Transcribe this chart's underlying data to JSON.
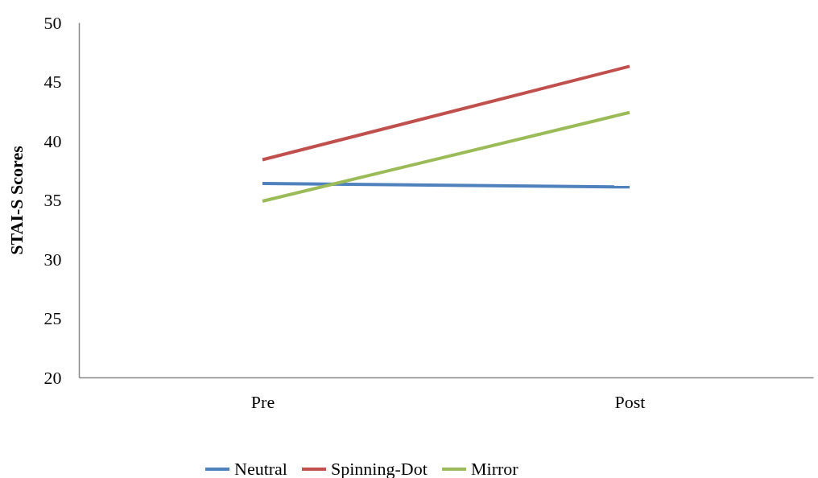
{
  "chart_data": {
    "type": "line",
    "ylabel": "STAI-S Scores",
    "categories": [
      "Pre",
      "Post"
    ],
    "series": [
      {
        "name": "Neutral",
        "color": "#4f81bd",
        "values": [
          36.4,
          36.1
        ]
      },
      {
        "name": "Spinning-Dot",
        "color": "#c0504d",
        "values": [
          38.4,
          46.3
        ]
      },
      {
        "name": "Mirror",
        "color": "#9bbb59",
        "values": [
          34.9,
          42.4
        ]
      }
    ],
    "ylim": [
      20,
      50
    ],
    "yticks": [
      20,
      25,
      30,
      35,
      40,
      45,
      50
    ],
    "grid": false,
    "legend": "bottom",
    "marker": "none",
    "line_style": "solid"
  }
}
